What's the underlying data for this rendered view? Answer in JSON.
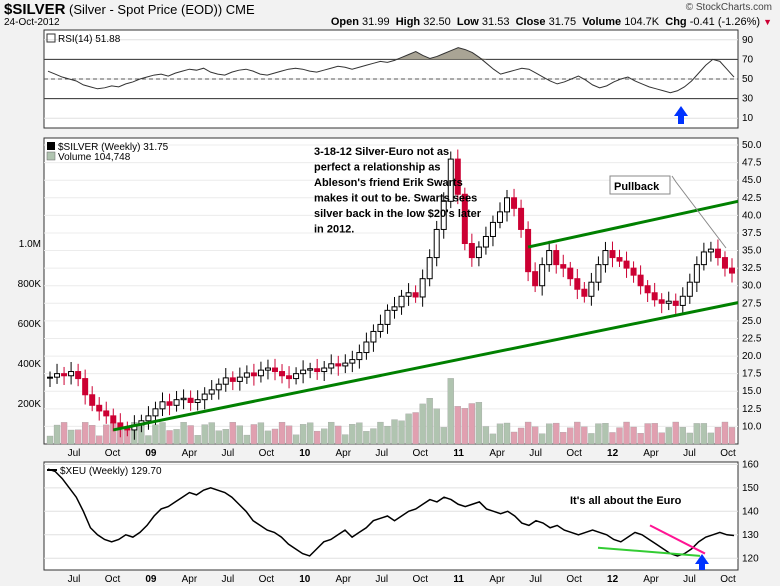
{
  "header": {
    "symbol": "$SILVER",
    "description": "(Silver - Spot Price (EOD))",
    "exchange": "CME",
    "date": "24-Oct-2012",
    "open_label": "Open",
    "open": "31.99",
    "high_label": "High",
    "high": "32.50",
    "low_label": "Low",
    "low": "31.53",
    "close_label": "Close",
    "close": "31.75",
    "volume_label": "Volume",
    "volume": "104.7K",
    "chg_label": "Chg",
    "chg": "-0.41 (-1.26%)",
    "watermark": "© StockCharts.com"
  },
  "colors": {
    "up": "#000000",
    "down": "#cc0033",
    "trend": "#008000",
    "rsi_fill": "#a09a8a",
    "blue_arrow": "#0033ff",
    "xeu_line": "#000000",
    "pink": "#ff1493",
    "lime": "#33cc33",
    "vol_up": "#b0c4b0",
    "vol_down": "#e0a0b0"
  },
  "chart_data": [
    {
      "type": "line",
      "panel": "rsi",
      "legend": "RSI(14) 51.88",
      "ylim": [
        0,
        100
      ],
      "y_ticks": [
        10,
        30,
        50,
        70,
        90
      ],
      "levels": [
        30,
        70
      ],
      "values": [
        58,
        55,
        52,
        50,
        48,
        44,
        42,
        40,
        41,
        43,
        42,
        45,
        47,
        50,
        52,
        54,
        55,
        53,
        56,
        58,
        60,
        59,
        61,
        57,
        55,
        54,
        57,
        59,
        60,
        58,
        55,
        54,
        56,
        58,
        60,
        61,
        60,
        58,
        57,
        59,
        61,
        63,
        62,
        60,
        62,
        64,
        66,
        68,
        67,
        69,
        72,
        75,
        78,
        74,
        71,
        73,
        76,
        79,
        82,
        80,
        77,
        72,
        66,
        60,
        55,
        57,
        59,
        61,
        60,
        56,
        52,
        48,
        45,
        47,
        50,
        53,
        49,
        44,
        41,
        43,
        47,
        50,
        52,
        48,
        45,
        42,
        40,
        38,
        36,
        38,
        42,
        48,
        56,
        64,
        70,
        68,
        60,
        52
      ]
    },
    {
      "type": "candlestick",
      "panel": "price",
      "legend": "$SILVER (Weekly) 31.75",
      "volume_legend": "Volume 104,748",
      "ylim": [
        7.5,
        51
      ],
      "y_ticks": [
        "10.0",
        "12.5",
        "15.0",
        "17.5",
        "20.0",
        "22.5",
        "25.0",
        "27.5",
        "30.0",
        "32.5",
        "35.0",
        "37.5",
        "40.0",
        "42.5",
        "45.0",
        "47.5",
        "50.0"
      ],
      "volume_ticks": [
        "200K",
        "400K",
        "600K",
        "800K",
        "1.0M"
      ],
      "x_ticks": [
        "Jul",
        "Oct",
        "09",
        "Apr",
        "Jul",
        "Oct",
        "10",
        "Apr",
        "Jul",
        "Oct",
        "11",
        "Apr",
        "Jul",
        "Oct",
        "12",
        "Apr",
        "Jul",
        "Oct"
      ],
      "closes": [
        17.0,
        17.5,
        17.2,
        17.8,
        16.8,
        14.5,
        13.0,
        12.2,
        11.5,
        10.5,
        9.8,
        9.5,
        10.2,
        10.8,
        11.5,
        12.5,
        13.5,
        13.0,
        13.8,
        14.0,
        13.4,
        13.8,
        14.6,
        15.2,
        16.0,
        16.9,
        16.4,
        17.0,
        17.6,
        17.2,
        18.0,
        18.3,
        17.8,
        17.2,
        16.8,
        17.5,
        18.0,
        18.2,
        17.8,
        18.3,
        18.9,
        18.6,
        19.0,
        19.5,
        20.5,
        22.0,
        23.5,
        24.5,
        26.5,
        27.0,
        28.5,
        29.0,
        28.4,
        31.0,
        34.0,
        38.0,
        42.0,
        48.0,
        43.0,
        36.0,
        34.0,
        35.5,
        37.0,
        39.0,
        40.5,
        42.5,
        41.0,
        38.0,
        32.0,
        30.0,
        33.0,
        35.0,
        33.0,
        32.5,
        31.0,
        29.5,
        28.5,
        30.5,
        33.0,
        35.0,
        34.0,
        33.5,
        32.5,
        31.5,
        30.0,
        29.0,
        28.0,
        27.5,
        27.8,
        27.2,
        28.5,
        30.5,
        33.0,
        34.8,
        35.2,
        34.0,
        32.5,
        31.8
      ],
      "annotations": [
        "3-18-12 Silver-Euro not as",
        "perfect a relationship as",
        "Ableson's friend Erik Swarts",
        "makes it out to be. Swarts sees",
        "silver back in the low $20's later",
        "in 2012."
      ],
      "callout": "Pullback"
    },
    {
      "type": "line",
      "panel": "xeu",
      "legend": "$XEU (Weekly) 129.70",
      "ylim": [
        115,
        161
      ],
      "y_ticks": [
        120,
        130,
        140,
        150,
        160
      ],
      "values": [
        158,
        157,
        154,
        150,
        146,
        140,
        133,
        130,
        128,
        127,
        128,
        130,
        129,
        131,
        134,
        138,
        141,
        142,
        144,
        146,
        148,
        147,
        149,
        150,
        149,
        148,
        146,
        143,
        140,
        136,
        134,
        132,
        131,
        129,
        126,
        124,
        122,
        121,
        124,
        127,
        128,
        130,
        132,
        129,
        131,
        133,
        136,
        137,
        138,
        136,
        138,
        140,
        141,
        143,
        145,
        144,
        146,
        145,
        143,
        142,
        143,
        144,
        141,
        140,
        139,
        140,
        138,
        135,
        134,
        136,
        135,
        133,
        134,
        132,
        131,
        130,
        131,
        132,
        131,
        130,
        128,
        127,
        129,
        131,
        130,
        128,
        126,
        124,
        122,
        121,
        122,
        124,
        127,
        129,
        130,
        131,
        130,
        129.7
      ],
      "annotation": "It's all about the Euro"
    }
  ]
}
